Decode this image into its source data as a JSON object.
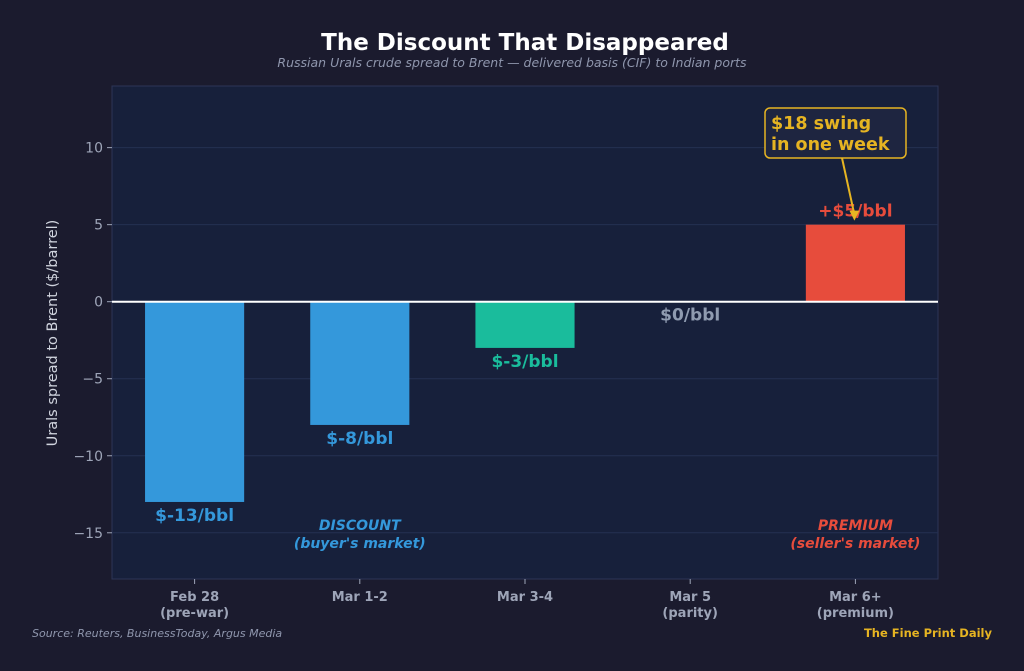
{
  "chart_data": {
    "type": "bar",
    "title": "The Discount That Disappeared",
    "subtitle": "Russian Urals crude spread to Brent — delivered basis (CIF) to Indian ports",
    "ylabel": "Urals spread to Brent ($/barrel)",
    "xlabel": "",
    "ylim": [
      -18,
      14
    ],
    "yticks": [
      -15,
      -10,
      -5,
      0,
      5,
      10
    ],
    "grid": true,
    "categories": [
      [
        "Feb 28",
        "(pre-war)"
      ],
      [
        "Mar 1-2"
      ],
      [
        "Mar 3-4"
      ],
      [
        "Mar 5",
        "(parity)"
      ],
      [
        "Mar 6+",
        "(premium)"
      ]
    ],
    "values": [
      -13,
      -8,
      -3,
      0,
      5
    ],
    "bar_labels": [
      "$-13/bbl",
      "$-8/bbl",
      "$-3/bbl",
      "$0/bbl",
      "+$5/bbl"
    ],
    "bar_colors": [
      "#3498db",
      "#3498db",
      "#1abc9c",
      "#8f9bb0",
      "#e74c3c"
    ],
    "regions": [
      {
        "lines": [
          "DISCOUNT",
          "(buyer's market)"
        ],
        "color": "#3498db",
        "x_index": 1,
        "y": -15
      },
      {
        "lines": [
          "PREMIUM",
          "(seller's market)"
        ],
        "color": "#e74c3c",
        "x_index": 4,
        "y": -15
      }
    ],
    "annotation": {
      "lines": [
        "$18 swing",
        "in one week"
      ],
      "x_index": 4,
      "y": 5,
      "color": "#e6b422"
    }
  },
  "footer": {
    "source": "Source: Reuters, BusinessToday, Argus Media",
    "brand": "The Fine Print Daily"
  }
}
